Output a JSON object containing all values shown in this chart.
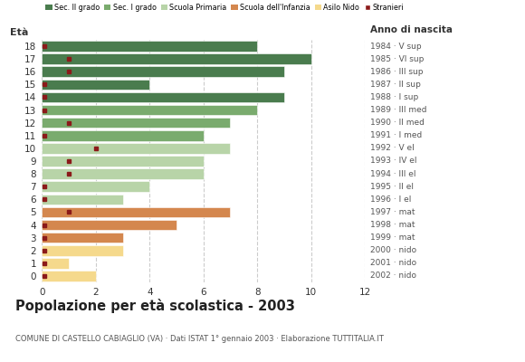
{
  "ages": [
    18,
    17,
    16,
    15,
    14,
    13,
    12,
    11,
    10,
    9,
    8,
    7,
    6,
    5,
    4,
    3,
    2,
    1,
    0
  ],
  "bar_values": [
    8,
    10,
    9,
    4,
    9,
    8,
    7,
    6,
    7,
    6,
    6,
    4,
    3,
    7,
    5,
    3,
    3,
    1,
    2
  ],
  "stranieri_vals": [
    0.1,
    1,
    1,
    0.1,
    0.1,
    0.1,
    1,
    0.1,
    2,
    1,
    1,
    0.1,
    0.1,
    1,
    0.1,
    0.1,
    0.1,
    0.1,
    0.1
  ],
  "categories": {
    "sec2": [
      18,
      17,
      16,
      15,
      14
    ],
    "sec1": [
      13,
      12,
      11
    ],
    "primaria": [
      10,
      9,
      8,
      7,
      6
    ],
    "infanzia": [
      5,
      4,
      3
    ],
    "nido": [
      2,
      1,
      0
    ]
  },
  "colors": {
    "sec2": "#4a7c4e",
    "sec1": "#7aab6e",
    "primaria": "#b8d4a8",
    "infanzia": "#d4874e",
    "nido": "#f5d98c",
    "stranieri": "#8b1a1a"
  },
  "right_labels": [
    "1984 · V sup",
    "1985 · VI sup",
    "1986 · III sup",
    "1987 · II sup",
    "1988 · I sup",
    "1989 · III med",
    "1990 · II med",
    "1991 · I med",
    "1992 · V el",
    "1993 · IV el",
    "1994 · III el",
    "1995 · II el",
    "1996 · I el",
    "1997 · mat",
    "1998 · mat",
    "1999 · mat",
    "2000 · nido",
    "2001 · nido",
    "2002 · nido"
  ],
  "legend_labels": [
    "Sec. II grado",
    "Sec. I grado",
    "Scuola Primaria",
    "Scuola dell'Infanzia",
    "Asilo Nido",
    "Stranieri"
  ],
  "title": "Popolazione per età scolastica - 2003",
  "subtitle": "COMUNE DI CASTELLO CABIAGLIO (VA) · Dati ISTAT 1° gennaio 2003 · Elaborazione TUTTITALIA.IT",
  "xlabel_eta": "Età",
  "xlabel_anno": "Anno di nascita",
  "xlim": [
    0,
    12
  ],
  "xticks": [
    0,
    2,
    4,
    6,
    8,
    10,
    12
  ],
  "background_color": "#ffffff",
  "grid_color": "#cccccc",
  "bar_height": 0.82
}
